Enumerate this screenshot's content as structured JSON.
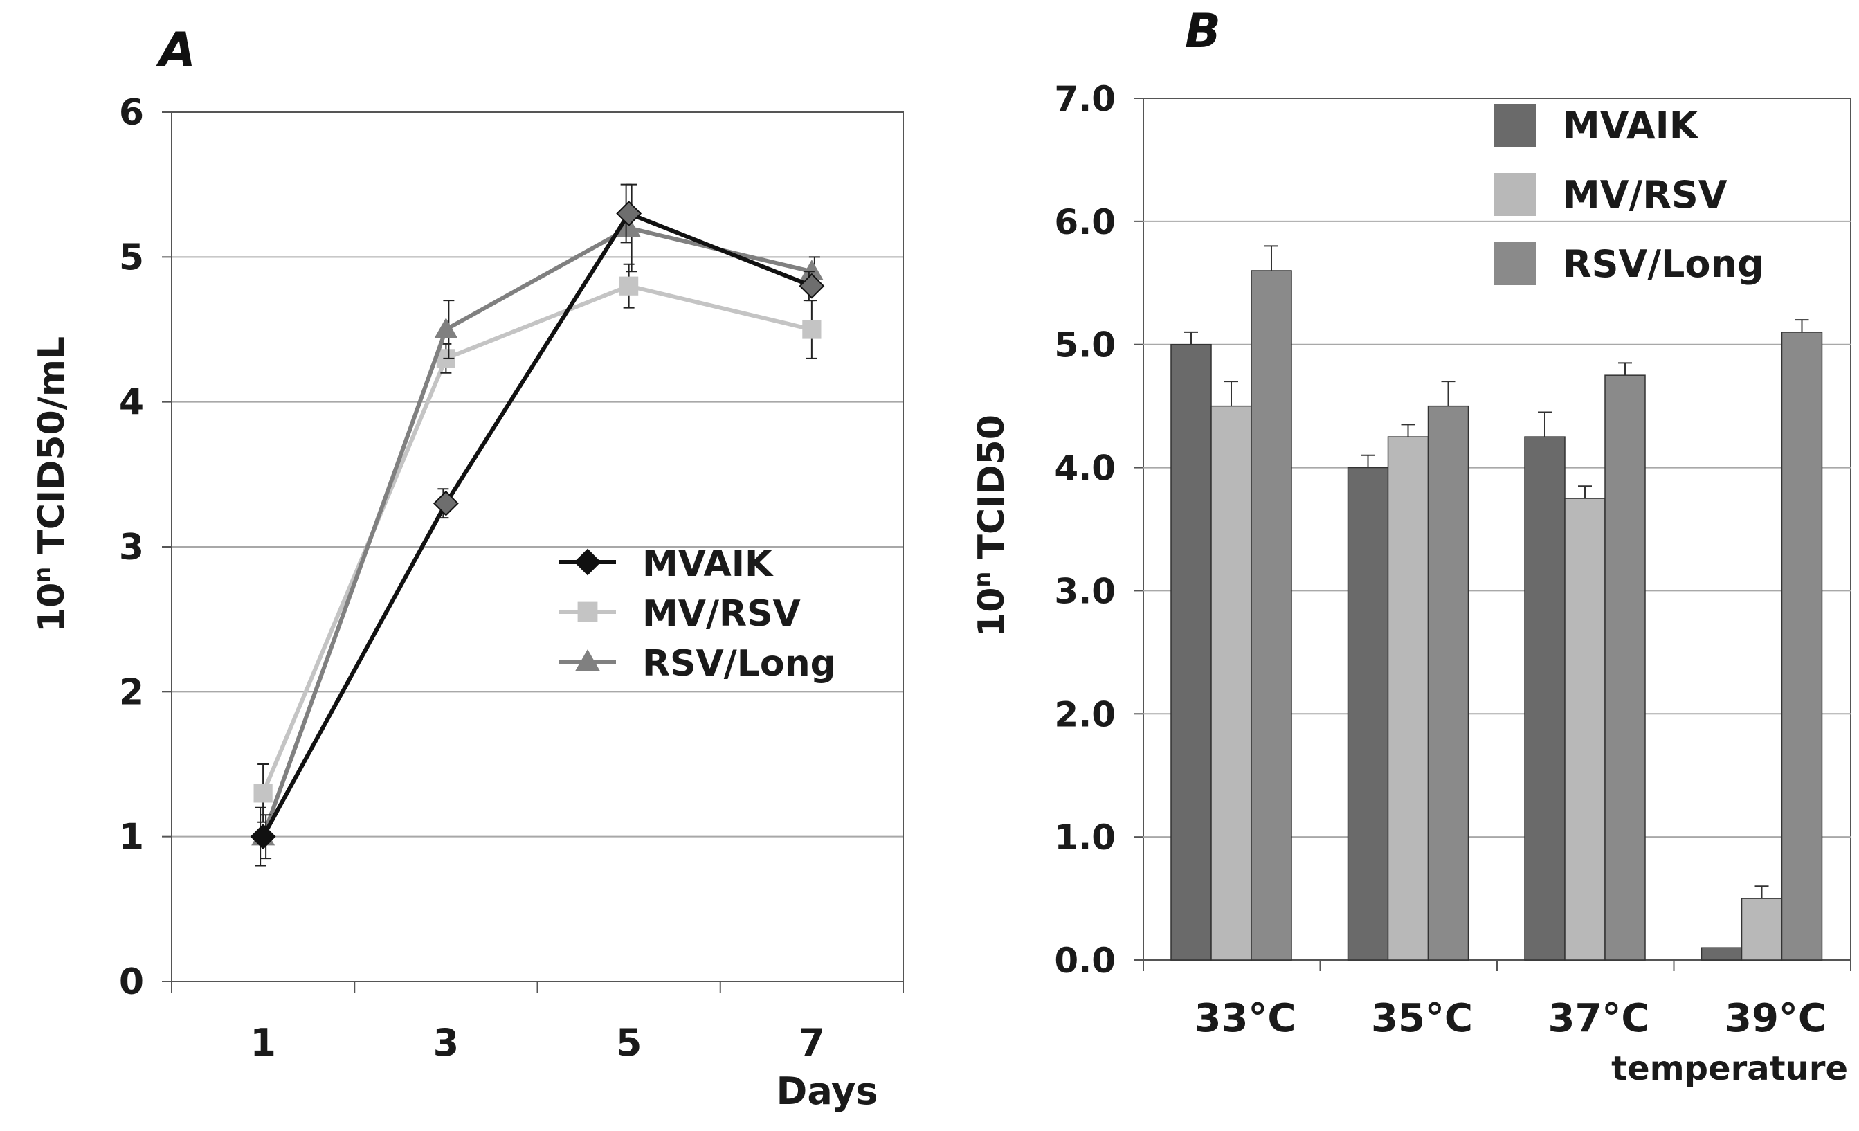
{
  "chart_data": [
    {
      "panel": "A",
      "type": "line",
      "xlabel": "Days",
      "ylabel_base": "10",
      "ylabel_sup": "n",
      "ylabel_rest": " TCID50/mL",
      "x": [
        1,
        3,
        5,
        7
      ],
      "x_tick_labels": [
        "1",
        "3",
        "5",
        "7"
      ],
      "ylim": [
        0,
        6
      ],
      "y_tick_labels": [
        "0",
        "1",
        "2",
        "3",
        "4",
        "5",
        "6"
      ],
      "grid": true,
      "legend_position": "center-right",
      "series": [
        {
          "name": "MVAIK",
          "values": [
            1.0,
            3.3,
            5.3,
            4.8
          ],
          "errors": [
            0.2,
            0.1,
            0.2,
            0.1
          ],
          "color": "#111111",
          "marker": "diamond"
        },
        {
          "name": "MV/RSV",
          "values": [
            1.3,
            4.3,
            4.8,
            4.5
          ],
          "errors": [
            0.2,
            0.1,
            0.15,
            0.2
          ],
          "color": "#c4c4c4",
          "marker": "square"
        },
        {
          "name": "RSV/Long",
          "values": [
            1.0,
            4.5,
            5.2,
            4.9
          ],
          "errors": [
            0.15,
            0.2,
            0.3,
            0.1
          ],
          "color": "#808080",
          "marker": "triangle"
        }
      ]
    },
    {
      "panel": "B",
      "type": "bar",
      "xlabel": "temperature",
      "ylabel_base": "10",
      "ylabel_sup": "n",
      "ylabel_rest": " TCID50",
      "categories": [
        "33°C",
        "35°C",
        "37°C",
        "39°C"
      ],
      "ylim": [
        0,
        7
      ],
      "y_tick_labels": [
        "0.0",
        "1.0",
        "2.0",
        "3.0",
        "4.0",
        "5.0",
        "6.0",
        "7.0"
      ],
      "grid": true,
      "legend_position": "top-center",
      "series": [
        {
          "name": "MVAIK",
          "values": [
            5.0,
            4.0,
            4.25,
            0.1
          ],
          "errors": [
            0.1,
            0.1,
            0.2,
            0.0
          ],
          "color": "#6a6a6a"
        },
        {
          "name": "MV/RSV",
          "values": [
            4.5,
            4.25,
            3.75,
            0.5
          ],
          "errors": [
            0.2,
            0.1,
            0.1,
            0.1
          ],
          "color": "#b8b8b8"
        },
        {
          "name": "RSV/Long",
          "values": [
            5.6,
            4.5,
            4.75,
            5.1
          ],
          "errors": [
            0.2,
            0.2,
            0.1,
            0.1
          ],
          "color": "#8a8a8a"
        }
      ]
    }
  ]
}
